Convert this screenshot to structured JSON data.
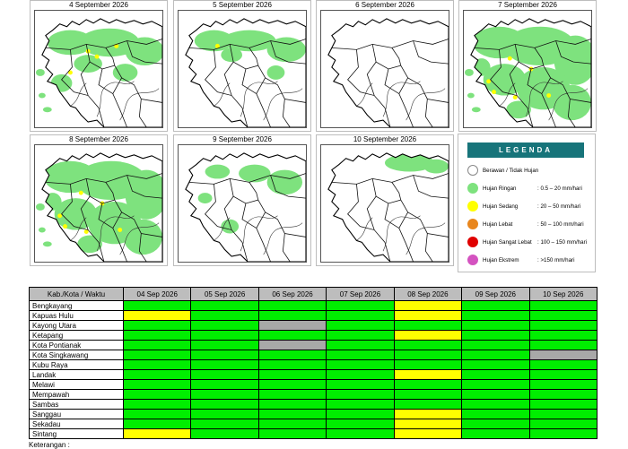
{
  "maps": [
    {
      "date": "4 September 2026",
      "intensity": "high"
    },
    {
      "date": "5 September 2026",
      "intensity": "medium"
    },
    {
      "date": "6 September 2026",
      "intensity": "none"
    },
    {
      "date": "7 September 2026",
      "intensity": "very-high"
    },
    {
      "date": "8 September 2026",
      "intensity": "very-high"
    },
    {
      "date": "9 September 2026",
      "intensity": "low"
    },
    {
      "date": "10 September 2026",
      "intensity": "minimal"
    }
  ],
  "legend": {
    "title": "LEGENDA",
    "items": [
      {
        "label": "Berawan / Tidak Hujan",
        "range": "",
        "color": "#ffffff"
      },
      {
        "label": "Hujan Ringan",
        "range": ": 0.5 – 20 mm/hari",
        "color": "#7ee27e"
      },
      {
        "label": "Hujan Sedang",
        "range": ": 20 – 50 mm/hari",
        "color": "#ffff00"
      },
      {
        "label": "Hujan Lebat",
        "range": ": 50 – 100 mm/hari",
        "color": "#e8861e"
      },
      {
        "label": "Hujan Sangat Lebat",
        "range": ": 100 – 150 mm/hari",
        "color": "#e00000"
      },
      {
        "label": "Hujan Ekstrem",
        "range": ": >150 mm/hari",
        "color": "#d453c0"
      }
    ]
  },
  "table": {
    "header_label": "Kab./Kota / Waktu",
    "dates": [
      "04 Sep 2026",
      "05 Sep 2026",
      "06 Sep 2026",
      "07 Sep 2026",
      "08 Sep 2026",
      "09 Sep 2026",
      "10 Sep 2026"
    ],
    "rows": [
      {
        "name": "Bengkayang",
        "cells": [
          "",
          "",
          "",
          "",
          "Y",
          "",
          ""
        ]
      },
      {
        "name": "Kapuas Hulu",
        "cells": [
          "Y",
          "G",
          "G",
          "G",
          "Y",
          "G",
          "G"
        ]
      },
      {
        "name": "Kayong Utara",
        "cells": [
          "G",
          "G",
          "X",
          "G",
          "G",
          "G",
          "G"
        ]
      },
      {
        "name": "Ketapang",
        "cells": [
          "G",
          "G",
          "G",
          "G",
          "Y",
          "G",
          "G"
        ]
      },
      {
        "name": "Kota Pontianak",
        "cells": [
          "G",
          "G",
          "X",
          "G",
          "G",
          "G",
          "G"
        ]
      },
      {
        "name": "Kota Singkawang",
        "cells": [
          "G",
          "G",
          "G",
          "G",
          "G",
          "G",
          "X"
        ]
      },
      {
        "name": "Kubu Raya",
        "cells": [
          "G",
          "G",
          "G",
          "G",
          "G",
          "G",
          "G"
        ]
      },
      {
        "name": "Landak",
        "cells": [
          "G",
          "G",
          "G",
          "G",
          "Y",
          "G",
          "G"
        ]
      },
      {
        "name": "Melawi",
        "cells": [
          "G",
          "G",
          "G",
          "G",
          "G",
          "G",
          "G"
        ]
      },
      {
        "name": "Mempawah",
        "cells": [
          "G",
          "G",
          "G",
          "G",
          "G",
          "G",
          "G"
        ]
      },
      {
        "name": "Sambas",
        "cells": [
          "G",
          "G",
          "G",
          "G",
          "G",
          "G",
          "G"
        ]
      },
      {
        "name": "Sanggau",
        "cells": [
          "G",
          "G",
          "G",
          "G",
          "Y",
          "G",
          "G"
        ]
      },
      {
        "name": "Sekadau",
        "cells": [
          "G",
          "G",
          "G",
          "G",
          "Y",
          "G",
          "G"
        ]
      },
      {
        "name": "Sintang",
        "cells": [
          "Y",
          "G",
          "G",
          "G",
          "Y",
          "G",
          "G"
        ]
      }
    ]
  },
  "cell_colors": {
    "G": "#00ee00",
    "Y": "#ffff00",
    "X": "#a8a8a8",
    "": "#00ee00"
  },
  "footer": "Keterangan :"
}
